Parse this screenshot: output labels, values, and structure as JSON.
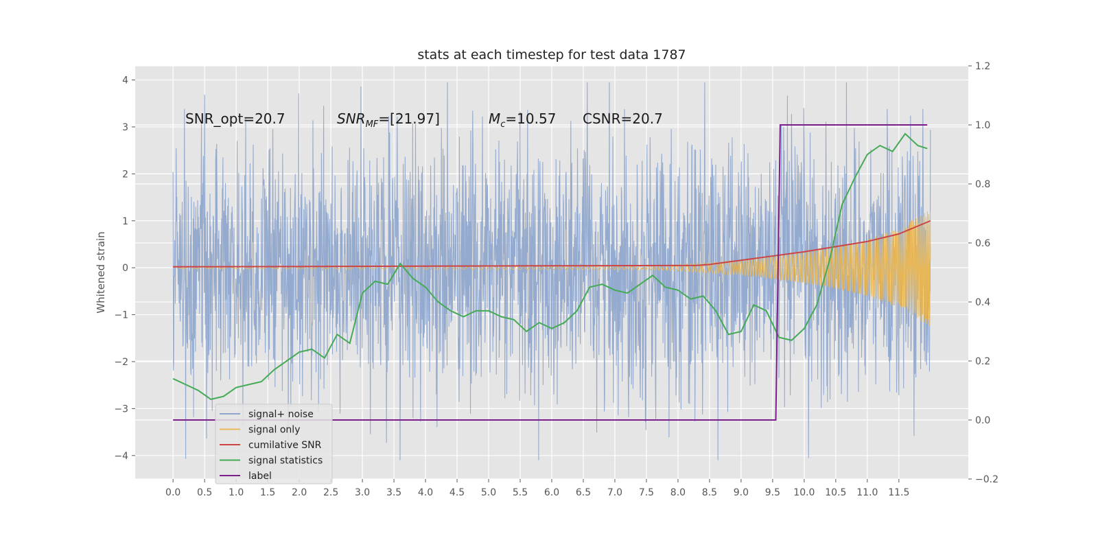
{
  "chart_data": {
    "type": "line",
    "title": "stats at each timestep for test data 1787",
    "ylabel": "Whitened strain",
    "xlim": [
      -0.6,
      12.6
    ],
    "ylim": [
      -4.5,
      4.3
    ],
    "y2lim": [
      -0.2,
      1.2
    ],
    "x_ticks": [
      "0.0",
      "0.5",
      "1.0",
      "1.5",
      "2.0",
      "2.5",
      "3.0",
      "3.5",
      "4.0",
      "4.5",
      "5.0",
      "5.5",
      "6.0",
      "6.5",
      "7.0",
      "7.5",
      "8.0",
      "8.5",
      "9.0",
      "9.5",
      "10.0",
      "10.5",
      "11.0",
      "11.5"
    ],
    "y_ticks": [
      "4",
      "3",
      "2",
      "1",
      "0",
      "−1",
      "−2",
      "−3",
      "−4"
    ],
    "y2_ticks": [
      "1.2",
      "1.0",
      "0.8",
      "0.6",
      "0.4",
      "0.2",
      "0.0",
      "−0.2"
    ],
    "grid": true,
    "legend_position": "lower-left",
    "annotations": [
      {
        "text": "SNR_opt=20.7",
        "x": 0.2,
        "y": 3.1
      },
      {
        "text": "SNR_MF=[21.97]",
        "x": 2.6,
        "y": 3.1
      },
      {
        "text": "M_c=10.57",
        "x": 5.0,
        "y": 3.1
      },
      {
        "text": "CSNR=20.7",
        "x": 6.5,
        "y": 3.1
      }
    ],
    "series": [
      {
        "name": "signal+ noise",
        "color": "#8fa6cc",
        "axis": "left",
        "kind": "noise",
        "x_range": [
          0.0,
          12.0
        ],
        "std": 1.0
      },
      {
        "name": "signal only",
        "color": "#e8b85a",
        "axis": "left",
        "kind": "chirp",
        "envelope_x": [
          0.0,
          7.5,
          8.0,
          8.5,
          9.0,
          9.5,
          10.0,
          10.5,
          11.0,
          11.5,
          12.0
        ],
        "envelope_y": [
          0.02,
          0.04,
          0.07,
          0.11,
          0.16,
          0.24,
          0.33,
          0.45,
          0.6,
          0.85,
          1.25
        ]
      },
      {
        "name": "cumilative SNR",
        "color": "#cc4444",
        "axis": "left",
        "x": [
          0.0,
          8.3,
          8.5,
          9.0,
          9.5,
          10.0,
          10.5,
          11.0,
          11.5,
          12.0
        ],
        "y": [
          0.02,
          0.05,
          0.07,
          0.16,
          0.25,
          0.34,
          0.45,
          0.56,
          0.72,
          1.0
        ]
      },
      {
        "name": "signal statistics",
        "color": "#44aa55",
        "axis": "right",
        "x": [
          0.0,
          0.2,
          0.4,
          0.6,
          0.8,
          1.0,
          1.2,
          1.4,
          1.6,
          1.8,
          2.0,
          2.2,
          2.4,
          2.6,
          2.8,
          3.0,
          3.2,
          3.4,
          3.6,
          3.8,
          4.0,
          4.2,
          4.4,
          4.6,
          4.8,
          5.0,
          5.2,
          5.4,
          5.6,
          5.8,
          6.0,
          6.2,
          6.4,
          6.6,
          6.8,
          7.0,
          7.2,
          7.4,
          7.6,
          7.8,
          8.0,
          8.2,
          8.4,
          8.6,
          8.8,
          9.0,
          9.2,
          9.4,
          9.6,
          9.8,
          10.0,
          10.2,
          10.4,
          10.6,
          10.8,
          11.0,
          11.2,
          11.4,
          11.6,
          11.8,
          11.95
        ],
        "y": [
          0.14,
          0.12,
          0.1,
          0.07,
          0.08,
          0.11,
          0.12,
          0.13,
          0.17,
          0.2,
          0.23,
          0.24,
          0.21,
          0.29,
          0.26,
          0.43,
          0.47,
          0.46,
          0.53,
          0.48,
          0.45,
          0.4,
          0.37,
          0.35,
          0.37,
          0.37,
          0.35,
          0.34,
          0.3,
          0.33,
          0.31,
          0.33,
          0.37,
          0.45,
          0.46,
          0.44,
          0.43,
          0.46,
          0.49,
          0.45,
          0.44,
          0.41,
          0.42,
          0.37,
          0.29,
          0.3,
          0.39,
          0.37,
          0.28,
          0.27,
          0.31,
          0.39,
          0.54,
          0.73,
          0.82,
          0.9,
          0.93,
          0.91,
          0.97,
          0.93,
          0.92
        ]
      },
      {
        "name": "label",
        "color": "#7b1f8a",
        "axis": "right",
        "x": [
          0.0,
          9.55,
          9.62,
          11.95
        ],
        "y": [
          0.0,
          0.0,
          1.0,
          1.0
        ]
      }
    ]
  },
  "legend": {
    "items": [
      {
        "label": "signal+ noise",
        "color": "#8fa6cc"
      },
      {
        "label": "signal only",
        "color": "#e8b85a"
      },
      {
        "label": "cumilative SNR",
        "color": "#cc4444"
      },
      {
        "label": "signal statistics",
        "color": "#44aa55"
      },
      {
        "label": "label",
        "color": "#7b1f8a"
      }
    ]
  }
}
